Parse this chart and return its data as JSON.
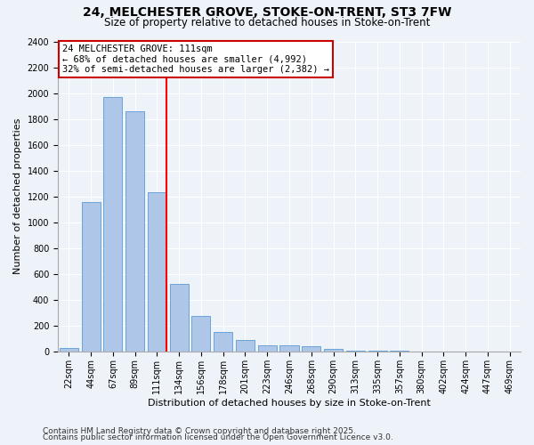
{
  "title1": "24, MELCHESTER GROVE, STOKE-ON-TRENT, ST3 7FW",
  "title2": "Size of property relative to detached houses in Stoke-on-Trent",
  "xlabel": "Distribution of detached houses by size in Stoke-on-Trent",
  "ylabel": "Number of detached properties",
  "categories": [
    "22sqm",
    "44sqm",
    "67sqm",
    "89sqm",
    "111sqm",
    "134sqm",
    "156sqm",
    "178sqm",
    "201sqm",
    "223sqm",
    "246sqm",
    "268sqm",
    "290sqm",
    "313sqm",
    "335sqm",
    "357sqm",
    "380sqm",
    "402sqm",
    "424sqm",
    "447sqm",
    "469sqm"
  ],
  "values": [
    30,
    1160,
    1970,
    1860,
    1230,
    520,
    275,
    150,
    90,
    50,
    45,
    40,
    20,
    8,
    5,
    3,
    2,
    1,
    1,
    0,
    1
  ],
  "bar_color": "#aec6e8",
  "bar_edge_color": "#5b9bd5",
  "red_line_index": 4,
  "annotation_text": "24 MELCHESTER GROVE: 111sqm\n← 68% of detached houses are smaller (4,992)\n32% of semi-detached houses are larger (2,382) →",
  "annotation_box_color": "#ffffff",
  "annotation_box_edge": "#cc0000",
  "ylim": [
    0,
    2400
  ],
  "yticks": [
    0,
    200,
    400,
    600,
    800,
    1000,
    1200,
    1400,
    1600,
    1800,
    2000,
    2200,
    2400
  ],
  "footer1": "Contains HM Land Registry data © Crown copyright and database right 2025.",
  "footer2": "Contains public sector information licensed under the Open Government Licence v3.0.",
  "background_color": "#eef2f9",
  "title_fontsize": 10,
  "subtitle_fontsize": 8.5,
  "axis_label_fontsize": 8,
  "tick_fontsize": 7,
  "annotation_fontsize": 7.5,
  "footer_fontsize": 6.5
}
